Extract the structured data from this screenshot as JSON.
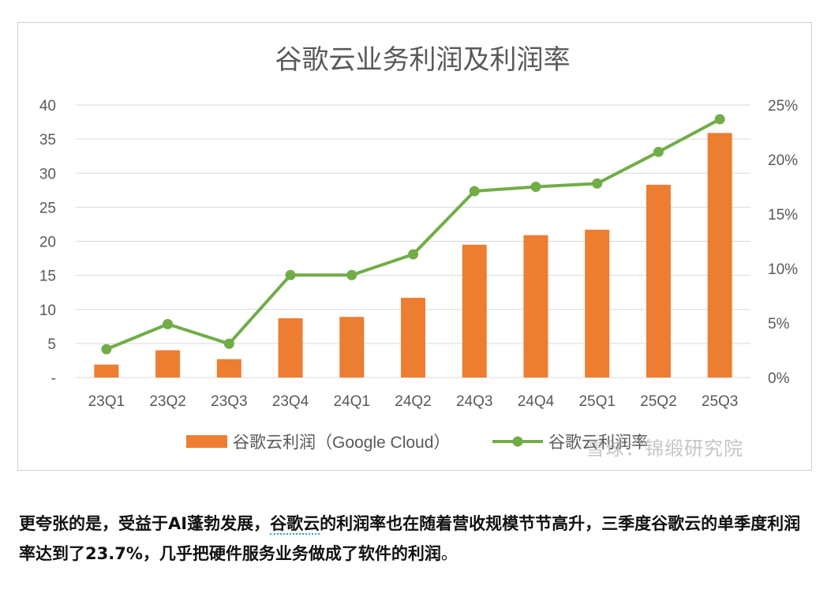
{
  "chart_data": {
    "type": "bar+line",
    "title": "谷歌云业务利润及利润率",
    "categories": [
      "23Q1",
      "23Q2",
      "23Q3",
      "23Q4",
      "24Q1",
      "24Q2",
      "24Q3",
      "24Q4",
      "25Q1",
      "25Q2",
      "25Q3"
    ],
    "series": [
      {
        "name": "谷歌云利润（Google Cloud）",
        "type": "bar",
        "axis": "left",
        "values": [
          1.9,
          4.0,
          2.7,
          8.7,
          8.9,
          11.7,
          19.5,
          20.9,
          21.7,
          28.3,
          35.9
        ]
      },
      {
        "name": "谷歌云利润率",
        "type": "line",
        "axis": "right",
        "values": [
          2.6,
          4.9,
          3.1,
          9.4,
          9.4,
          11.3,
          17.1,
          17.5,
          17.8,
          20.7,
          23.7
        ]
      }
    ],
    "y_left": {
      "min": 0,
      "max": 40,
      "ticks": [
        "-",
        "5",
        "10",
        "15",
        "20",
        "25",
        "30",
        "35",
        "40"
      ]
    },
    "y_right": {
      "min": 0,
      "max": 25,
      "ticks": [
        "0%",
        "5%",
        "10%",
        "15%",
        "20%",
        "25%"
      ]
    },
    "colors": {
      "bar": "#ED7D31",
      "line": "#70AD47",
      "grid": "#d9d9d9",
      "text": "#595959"
    },
    "legend_position": "bottom"
  },
  "watermark": "雪球：锦缎研究院",
  "caption": {
    "part1": "更夸张的是，受益于AI蓬勃发展，",
    "link": "谷歌云",
    "part2": "的利润率也在随着营收规模节节高升，三季度谷歌云的单季度利润率达到了23.7%，几乎把硬件服务业务做成了软件的利润",
    "end": "。"
  }
}
